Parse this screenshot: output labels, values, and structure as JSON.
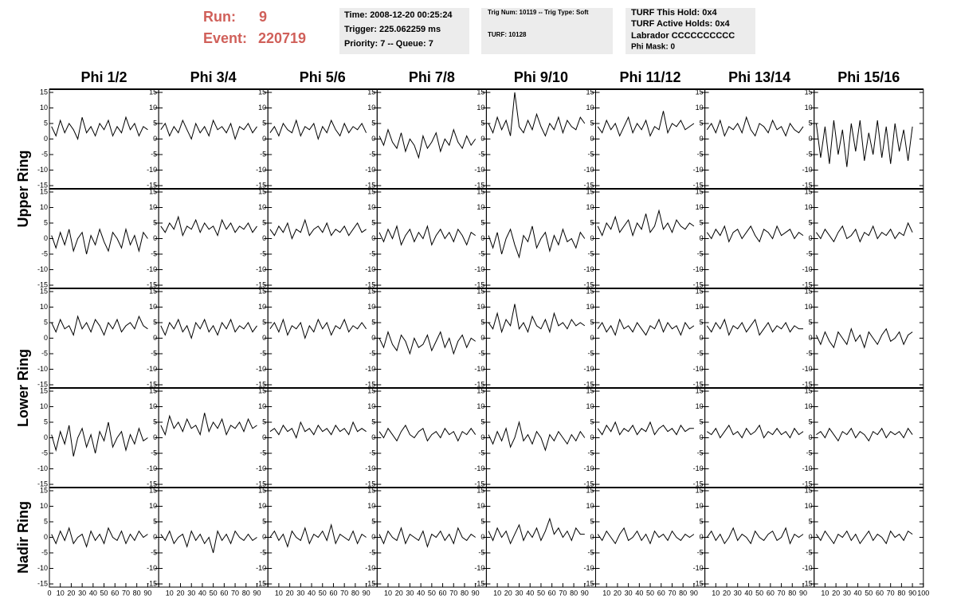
{
  "header": {
    "run_label": "Run:",
    "run": 9,
    "event_label": "Event:",
    "event": 220719,
    "box1": [
      "Time: 2008-12-20 00:25:24",
      "Trigger: 225.062259 ms",
      "Priority: 7 -- Queue: 7"
    ],
    "box2": [
      "Trig Num: 10119 -- Trig Type: Soft",
      "TURF: 10128"
    ],
    "box3": [
      "TURF This Hold: 0x4",
      "TURF Active Holds: 0x4",
      "Labrador CCCCCCCCCC",
      "Phi Mask: 0"
    ]
  },
  "columns": [
    "Phi 1/2",
    "Phi 3/4",
    "Phi 5/6",
    "Phi 7/8",
    "Phi 9/10",
    "Phi 11/12",
    "Phi 13/14",
    "Phi 15/16"
  ],
  "rows": [
    "Upper Ring",
    "Lower Ring",
    "Nadir Ring"
  ],
  "axes": {
    "x": [
      2,
      6,
      10,
      14,
      18,
      22,
      26,
      30,
      34,
      38,
      42,
      46,
      50,
      54,
      58,
      62,
      66,
      70,
      74,
      78,
      82,
      86,
      90
    ],
    "xlim": [
      0,
      100
    ],
    "xticks": [
      0,
      10,
      20,
      30,
      40,
      50,
      60,
      70,
      80,
      90,
      100
    ],
    "ylim": [
      -15,
      15
    ],
    "yticks": [
      -15,
      -10,
      -5,
      0,
      5,
      10,
      15
    ]
  },
  "chart_data": [
    {
      "type": "line",
      "values": [
        4,
        1,
        6,
        2,
        5,
        3,
        0,
        7,
        2,
        4,
        1,
        5,
        3,
        6,
        1,
        4,
        2,
        7,
        3,
        5,
        1,
        4,
        3
      ]
    },
    {
      "type": "line",
      "values": [
        3,
        5,
        1,
        4,
        2,
        6,
        3,
        0,
        5,
        2,
        4,
        1,
        6,
        3,
        4,
        2,
        5,
        0,
        4,
        3,
        5,
        2,
        4
      ]
    },
    {
      "type": "line",
      "values": [
        2,
        4,
        1,
        5,
        3,
        2,
        6,
        1,
        4,
        3,
        5,
        0,
        4,
        2,
        6,
        3,
        1,
        5,
        2,
        4,
        3,
        5,
        2
      ]
    },
    {
      "type": "line",
      "values": [
        1,
        -2,
        3,
        -1,
        -3,
        2,
        -4,
        0,
        -2,
        -6,
        1,
        -3,
        -1,
        2,
        -4,
        0,
        -2,
        3,
        -1,
        -3,
        1,
        -2,
        0
      ]
    },
    {
      "type": "line",
      "values": [
        5,
        2,
        7,
        3,
        6,
        1,
        15,
        4,
        2,
        6,
        3,
        8,
        4,
        1,
        5,
        3,
        7,
        2,
        6,
        4,
        3,
        7,
        5
      ]
    },
    {
      "type": "line",
      "values": [
        4,
        2,
        6,
        3,
        5,
        1,
        4,
        7,
        2,
        5,
        3,
        6,
        1,
        4,
        3,
        9,
        2,
        5,
        4,
        6,
        3,
        4,
        5
      ]
    },
    {
      "type": "line",
      "values": [
        3,
        5,
        2,
        6,
        1,
        4,
        3,
        5,
        2,
        7,
        3,
        1,
        5,
        4,
        2,
        6,
        3,
        4,
        1,
        5,
        3,
        2,
        4
      ]
    },
    {
      "type": "line",
      "values": [
        5,
        -6,
        4,
        -8,
        6,
        -5,
        3,
        -9,
        5,
        -4,
        6,
        -7,
        2,
        -5,
        6,
        -6,
        4,
        -8,
        5,
        -4,
        3,
        -7,
        4
      ]
    },
    {
      "type": "line",
      "values": [
        1,
        -3,
        2,
        -2,
        3,
        -4,
        0,
        2,
        -5,
        1,
        -2,
        3,
        -1,
        -4,
        2,
        0,
        -3,
        3,
        -2,
        1,
        -4,
        2,
        0
      ]
    },
    {
      "type": "line",
      "values": [
        4,
        2,
        5,
        3,
        7,
        1,
        4,
        3,
        6,
        2,
        5,
        3,
        4,
        1,
        6,
        3,
        5,
        2,
        4,
        3,
        5,
        2,
        4
      ]
    },
    {
      "type": "line",
      "values": [
        3,
        1,
        4,
        2,
        5,
        0,
        3,
        2,
        6,
        1,
        3,
        4,
        2,
        5,
        1,
        3,
        2,
        4,
        1,
        3,
        5,
        2,
        3
      ]
    },
    {
      "type": "line",
      "values": [
        2,
        -1,
        3,
        0,
        4,
        -2,
        1,
        3,
        -1,
        2,
        0,
        4,
        -2,
        1,
        3,
        0,
        2,
        -1,
        3,
        1,
        -2,
        2,
        1
      ]
    },
    {
      "type": "line",
      "values": [
        1,
        -3,
        2,
        -5,
        0,
        3,
        -2,
        -6,
        1,
        -1,
        4,
        -3,
        0,
        2,
        -4,
        1,
        -2,
        3,
        -1,
        0,
        -3,
        2,
        0
      ]
    },
    {
      "type": "line",
      "values": [
        4,
        1,
        5,
        3,
        7,
        2,
        4,
        6,
        1,
        5,
        3,
        8,
        2,
        4,
        9,
        3,
        5,
        2,
        6,
        4,
        3,
        5,
        4
      ]
    },
    {
      "type": "line",
      "values": [
        2,
        0,
        3,
        1,
        4,
        -1,
        2,
        3,
        0,
        2,
        4,
        1,
        -1,
        3,
        2,
        0,
        4,
        1,
        2,
        3,
        0,
        2,
        1
      ]
    },
    {
      "type": "line",
      "values": [
        2,
        0,
        3,
        1,
        -1,
        2,
        4,
        0,
        1,
        3,
        -1,
        2,
        1,
        4,
        0,
        2,
        1,
        3,
        0,
        2,
        1,
        5,
        2
      ]
    },
    {
      "type": "line",
      "values": [
        5,
        2,
        6,
        3,
        4,
        1,
        7,
        3,
        5,
        2,
        6,
        4,
        1,
        5,
        3,
        6,
        2,
        4,
        5,
        3,
        7,
        4,
        3
      ]
    },
    {
      "type": "line",
      "values": [
        4,
        1,
        5,
        3,
        6,
        2,
        4,
        0,
        5,
        3,
        6,
        2,
        4,
        1,
        5,
        3,
        6,
        2,
        4,
        3,
        5,
        2,
        4
      ]
    },
    {
      "type": "line",
      "values": [
        3,
        5,
        2,
        6,
        1,
        4,
        3,
        5,
        0,
        4,
        2,
        6,
        3,
        5,
        1,
        4,
        3,
        6,
        2,
        4,
        3,
        5,
        3
      ]
    },
    {
      "type": "line",
      "values": [
        0,
        -3,
        2,
        -2,
        -4,
        1,
        -1,
        -5,
        0,
        -3,
        -2,
        1,
        -4,
        -1,
        2,
        -3,
        0,
        -5,
        -1,
        1,
        -3,
        0,
        -1
      ]
    },
    {
      "type": "line",
      "values": [
        5,
        3,
        8,
        2,
        6,
        4,
        11,
        3,
        5,
        2,
        7,
        4,
        3,
        6,
        2,
        8,
        4,
        5,
        3,
        6,
        4,
        5,
        4
      ]
    },
    {
      "type": "line",
      "values": [
        3,
        5,
        2,
        4,
        1,
        6,
        3,
        4,
        2,
        5,
        3,
        1,
        4,
        3,
        6,
        2,
        5,
        3,
        4,
        1,
        5,
        3,
        4
      ]
    },
    {
      "type": "line",
      "values": [
        4,
        2,
        5,
        3,
        6,
        1,
        4,
        3,
        5,
        2,
        4,
        6,
        1,
        3,
        5,
        2,
        4,
        3,
        5,
        2,
        4,
        3,
        3
      ]
    },
    {
      "type": "line",
      "values": [
        1,
        -2,
        2,
        -1,
        -3,
        2,
        0,
        -2,
        3,
        -1,
        1,
        -3,
        2,
        0,
        -2,
        1,
        3,
        -1,
        0,
        2,
        -2,
        1,
        2
      ]
    },
    {
      "type": "line",
      "values": [
        1,
        -4,
        2,
        -2,
        4,
        -6,
        0,
        3,
        -3,
        1,
        -5,
        2,
        -1,
        5,
        -3,
        0,
        2,
        -4,
        1,
        -2,
        3,
        -1,
        0
      ]
    },
    {
      "type": "line",
      "values": [
        4,
        1,
        7,
        3,
        5,
        2,
        6,
        3,
        4,
        1,
        8,
        2,
        5,
        3,
        6,
        1,
        4,
        3,
        5,
        2,
        6,
        3,
        4
      ]
    },
    {
      "type": "line",
      "values": [
        2,
        3,
        1,
        4,
        2,
        3,
        0,
        5,
        2,
        3,
        1,
        4,
        2,
        3,
        1,
        4,
        2,
        3,
        1,
        5,
        2,
        3,
        2
      ]
    },
    {
      "type": "line",
      "values": [
        2,
        0,
        3,
        1,
        -1,
        2,
        4,
        1,
        0,
        2,
        3,
        -1,
        1,
        2,
        0,
        3,
        1,
        2,
        -1,
        2,
        1,
        3,
        1
      ]
    },
    {
      "type": "line",
      "values": [
        1,
        -2,
        2,
        -1,
        3,
        -3,
        0,
        5,
        -1,
        1,
        -2,
        2,
        0,
        -4,
        1,
        -1,
        2,
        0,
        -2,
        1,
        -1,
        2,
        0
      ]
    },
    {
      "type": "line",
      "values": [
        3,
        1,
        4,
        2,
        5,
        1,
        3,
        2,
        4,
        1,
        3,
        2,
        5,
        1,
        3,
        4,
        2,
        3,
        1,
        4,
        2,
        3,
        3
      ]
    },
    {
      "type": "line",
      "values": [
        2,
        1,
        3,
        0,
        2,
        4,
        1,
        2,
        0,
        3,
        1,
        2,
        4,
        0,
        2,
        1,
        3,
        1,
        2,
        0,
        3,
        1,
        2
      ]
    },
    {
      "type": "line",
      "values": [
        1,
        2,
        0,
        3,
        1,
        -1,
        2,
        1,
        3,
        0,
        2,
        1,
        -1,
        2,
        1,
        3,
        0,
        2,
        1,
        2,
        0,
        3,
        1
      ]
    },
    {
      "type": "line",
      "values": [
        1,
        -2,
        2,
        -1,
        3,
        -2,
        0,
        1,
        -3,
        2,
        -1,
        1,
        -2,
        3,
        0,
        -1,
        2,
        -2,
        1,
        -1,
        2,
        0,
        1
      ]
    },
    {
      "type": "line",
      "values": [
        1,
        -1,
        2,
        -2,
        0,
        1,
        -3,
        2,
        -1,
        1,
        -2,
        0,
        -5,
        2,
        -1,
        1,
        -2,
        2,
        0,
        -1,
        1,
        -1,
        0
      ]
    },
    {
      "type": "line",
      "values": [
        0,
        2,
        -1,
        1,
        -3,
        2,
        0,
        -1,
        3,
        -2,
        1,
        0,
        2,
        -1,
        4,
        -2,
        1,
        0,
        -1,
        2,
        -2,
        1,
        0
      ]
    },
    {
      "type": "line",
      "values": [
        1,
        -2,
        2,
        0,
        -1,
        3,
        -2,
        1,
        0,
        -1,
        2,
        -3,
        1,
        0,
        2,
        -1,
        1,
        -2,
        3,
        0,
        -1,
        1,
        0
      ]
    },
    {
      "type": "line",
      "values": [
        2,
        -1,
        3,
        0,
        2,
        -2,
        1,
        4,
        -1,
        2,
        0,
        3,
        -1,
        2,
        6,
        1,
        3,
        0,
        2,
        -1,
        3,
        1,
        1
      ]
    },
    {
      "type": "line",
      "values": [
        1,
        -1,
        2,
        0,
        -2,
        1,
        3,
        -1,
        0,
        2,
        -1,
        1,
        -2,
        2,
        0,
        1,
        -1,
        2,
        0,
        -1,
        1,
        0,
        1
      ]
    },
    {
      "type": "line",
      "values": [
        0,
        2,
        -1,
        1,
        -2,
        0,
        3,
        -1,
        1,
        0,
        -2,
        2,
        0,
        -1,
        1,
        2,
        -1,
        0,
        3,
        -2,
        1,
        0,
        1
      ]
    },
    {
      "type": "line",
      "values": [
        1,
        -1,
        2,
        0,
        -2,
        1,
        0,
        2,
        -1,
        1,
        -2,
        0,
        2,
        -1,
        1,
        0,
        -2,
        2,
        0,
        1,
        -1,
        2,
        1
      ]
    }
  ]
}
